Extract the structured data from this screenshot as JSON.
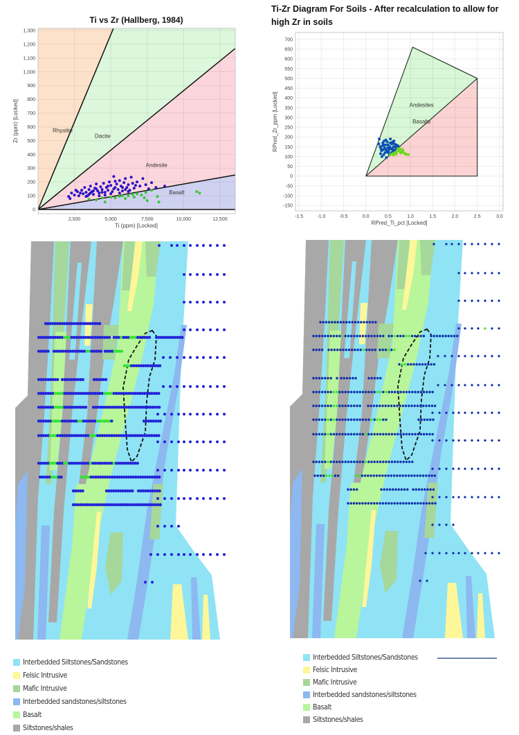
{
  "chart_data": [
    {
      "type": "scatter",
      "title": "Ti vs Zr (Hallberg, 1984)",
      "xlabel": "Ti (ppm) [Locked]",
      "ylabel": "Zr (ppm) [Locked]",
      "xlim": [
        0,
        13550
      ],
      "ylim": [
        -30,
        1315
      ],
      "xticks": [
        2500,
        5000,
        7500,
        10000,
        12500
      ],
      "xtick_labels": [
        "2,500",
        "5,000",
        "7,500",
        "10,000",
        "12,500"
      ],
      "yticks": [
        0,
        100,
        200,
        300,
        400,
        500,
        600,
        700,
        800,
        900,
        1000,
        1100,
        1200,
        1300
      ],
      "ytick_labels": [
        "0",
        "100",
        "200",
        "300",
        "400",
        "500",
        "600",
        "700",
        "800",
        "900",
        "1,000",
        "1,100",
        "1,200",
        "1,300"
      ],
      "grid": true,
      "regions": [
        {
          "label": "Rhyolite",
          "color": "#fde2cb",
          "polygon": [
            [
              0,
              0
            ],
            [
              0,
              1400
            ],
            [
              5512,
              1400
            ]
          ],
          "label_at": [
            1000,
            560
          ]
        },
        {
          "label": "Dacite",
          "color": "#dcf7db",
          "polygon": [
            [
              0,
              0
            ],
            [
              5512,
              1400
            ],
            [
              14000,
              1400
            ],
            [
              14000,
              1208
            ]
          ],
          "label_at": [
            3900,
            520
          ]
        },
        {
          "label": "Andesite",
          "color": "#fbd6dc",
          "polygon": [
            [
              0,
              0
            ],
            [
              14000,
              1208
            ],
            [
              14000,
              259
            ]
          ],
          "label_at": [
            7400,
            310
          ]
        },
        {
          "label": "Basalt",
          "color": "#cfd1f1",
          "polygon": [
            [
              0,
              0
            ],
            [
              14000,
              259
            ],
            [
              14000,
              0
            ]
          ],
          "label_at": [
            9000,
            110
          ]
        }
      ],
      "lines": [
        [
          [
            0,
            0
          ],
          [
            5512,
            1400
          ]
        ],
        [
          [
            0,
            0
          ],
          [
            14000,
            1208
          ]
        ],
        [
          [
            0,
            0
          ],
          [
            14000,
            259
          ]
        ],
        [
          [
            0,
            0
          ],
          [
            14000,
            0
          ]
        ]
      ],
      "series": [
        {
          "color": "#2b12c6",
          "points": [
            [
              2100,
              95
            ],
            [
              2200,
              80
            ],
            [
              2300,
              120
            ],
            [
              2500,
              105
            ],
            [
              2700,
              130
            ],
            [
              2800,
              100
            ],
            [
              3000,
              140
            ],
            [
              3100,
              115
            ],
            [
              3200,
              160
            ],
            [
              3300,
              125
            ],
            [
              3400,
              100
            ],
            [
              3500,
              145
            ],
            [
              3600,
              170
            ],
            [
              3700,
              130
            ],
            [
              3800,
              110
            ],
            [
              3900,
              155
            ],
            [
              4000,
              185
            ],
            [
              4100,
              135
            ],
            [
              4200,
              120
            ],
            [
              4300,
              165
            ],
            [
              4400,
              145
            ],
            [
              4500,
              190
            ],
            [
              4600,
              125
            ],
            [
              4700,
              160
            ],
            [
              4800,
              140
            ],
            [
              4900,
              200
            ],
            [
              5000,
              175
            ],
            [
              5100,
              130
            ],
            [
              5200,
              240
            ],
            [
              5300,
              160
            ],
            [
              5400,
              185
            ],
            [
              5500,
              145
            ],
            [
              5600,
              210
            ],
            [
              5700,
              170
            ],
            [
              5800,
              135
            ],
            [
              5900,
              195
            ],
            [
              6000,
              225
            ],
            [
              6100,
              160
            ],
            [
              6200,
              180
            ],
            [
              6300,
              140
            ],
            [
              6400,
              235
            ],
            [
              6500,
              190
            ],
            [
              6600,
              155
            ],
            [
              6800,
              200
            ],
            [
              7000,
              170
            ],
            [
              7200,
              225
            ],
            [
              7400,
              180
            ],
            [
              7600,
              150
            ],
            [
              7800,
              195
            ],
            [
              8100,
              160
            ],
            [
              8700,
              170
            ],
            [
              3500,
              110
            ],
            [
              4200,
              100
            ],
            [
              5000,
              115
            ],
            [
              5600,
              120
            ],
            [
              2600,
              140
            ],
            [
              3300,
              95
            ],
            [
              4600,
              105
            ],
            [
              6200,
              130
            ],
            [
              5300,
              205
            ],
            [
              2900,
              120
            ],
            [
              3800,
              135
            ],
            [
              4400,
              125
            ],
            [
              5200,
              150
            ],
            [
              5800,
              160
            ],
            [
              6700,
              175
            ],
            [
              4000,
              150
            ],
            [
              4800,
              170
            ],
            [
              3600,
              120
            ],
            [
              6000,
              145
            ]
          ]
        },
        {
          "color": "#3dc43a",
          "points": [
            [
              3500,
              75
            ],
            [
              4000,
              70
            ],
            [
              4400,
              85
            ],
            [
              4600,
              55
            ],
            [
              5000,
              90
            ],
            [
              5300,
              85
            ],
            [
              5600,
              95
            ],
            [
              6000,
              80
            ],
            [
              6200,
              100
            ],
            [
              6500,
              110
            ],
            [
              6800,
              115
            ],
            [
              7100,
              105
            ],
            [
              7300,
              85
            ],
            [
              7500,
              65
            ],
            [
              7400,
              125
            ],
            [
              7800,
              140
            ],
            [
              8200,
              95
            ],
            [
              8300,
              55
            ],
            [
              10900,
              130
            ],
            [
              11100,
              120
            ],
            [
              5800,
              100
            ],
            [
              6600,
              90
            ]
          ]
        }
      ]
    },
    {
      "type": "scatter",
      "title": "Ti-Zr Diagram For Soils - After recalculation to allow for",
      "title_line2": "high Zr in soils",
      "xlabel": "RPred_Ti_pct [Locked]",
      "ylabel": "RPred_Zr_ppm [Locked]",
      "xlim": [
        -1.58,
        3.08
      ],
      "ylim": [
        -178,
        735
      ],
      "xticks": [
        -1.5,
        -1.0,
        -0.5,
        0.0,
        0.5,
        1.0,
        1.5,
        2.0,
        2.5,
        3.0
      ],
      "xtick_labels": [
        "-1.5",
        "-1.0",
        "-0.5",
        "0.0",
        "0.5",
        "1.0",
        "1.5",
        "2.0",
        "2.5",
        "3.0"
      ],
      "yticks": [
        -150,
        -100,
        -50,
        0,
        50,
        100,
        150,
        200,
        250,
        300,
        350,
        400,
        450,
        500,
        550,
        600,
        650,
        700
      ],
      "ytick_labels": [
        "-150",
        "-100",
        "-50",
        "0",
        "50",
        "100",
        "150",
        "200",
        "250",
        "300",
        "350",
        "400",
        "450",
        "500",
        "550",
        "600",
        "650",
        "700"
      ],
      "grid": true,
      "regions": [
        {
          "label": "Andesites",
          "color": "#d7f7d6",
          "polygon": [
            [
              0,
              0
            ],
            [
              1.05,
              660
            ],
            [
              2.5,
              500
            ]
          ],
          "label_at": [
            1.25,
            355
          ]
        },
        {
          "label": "Basalts",
          "color": "#fbd3d3",
          "polygon": [
            [
              0,
              0
            ],
            [
              2.5,
              500
            ],
            [
              2.5,
              0
            ]
          ],
          "label_at": [
            1.25,
            270
          ]
        }
      ],
      "lines": [
        [
          [
            0,
            0
          ],
          [
            1.05,
            660
          ],
          [
            2.5,
            500
          ],
          [
            2.5,
            0
          ],
          [
            0,
            0
          ]
        ],
        [
          [
            0,
            0
          ],
          [
            2.5,
            500
          ]
        ]
      ],
      "series": [
        {
          "color": "#0a4fb3",
          "points": [
            [
              0.3,
              190
            ],
            [
              0.32,
              150
            ],
            [
              0.35,
              130
            ],
            [
              0.38,
              170
            ],
            [
              0.4,
              110
            ],
            [
              0.42,
              145
            ],
            [
              0.45,
              185
            ],
            [
              0.47,
              125
            ],
            [
              0.5,
              160
            ],
            [
              0.52,
              140
            ],
            [
              0.55,
              190
            ],
            [
              0.57,
              120
            ],
            [
              0.6,
              175
            ],
            [
              0.62,
              150
            ],
            [
              0.65,
              135
            ],
            [
              0.68,
              160
            ],
            [
              0.7,
              145
            ],
            [
              0.33,
              115
            ],
            [
              0.36,
              100
            ],
            [
              0.44,
              160
            ],
            [
              0.48,
              175
            ],
            [
              0.53,
              110
            ],
            [
              0.58,
              165
            ],
            [
              0.63,
              180
            ],
            [
              0.39,
              135
            ],
            [
              0.46,
              95
            ],
            [
              0.54,
              150
            ],
            [
              0.61,
              125
            ],
            [
              0.29,
              165
            ],
            [
              0.41,
              180
            ],
            [
              0.51,
              130
            ],
            [
              0.56,
              140
            ],
            [
              0.66,
              150
            ],
            [
              0.72,
              155
            ],
            [
              0.43,
              120
            ],
            [
              0.49,
              145
            ],
            [
              0.59,
              140
            ],
            [
              0.37,
              155
            ],
            [
              0.64,
              165
            ],
            [
              0.34,
              140
            ],
            [
              0.45,
              135
            ],
            [
              0.5,
              120
            ],
            [
              0.55,
              170
            ],
            [
              0.4,
              160
            ],
            [
              0.6,
              135
            ]
          ]
        },
        {
          "color": "#6fd61f",
          "points": [
            [
              0.55,
              110
            ],
            [
              0.6,
              115
            ],
            [
              0.65,
              120
            ],
            [
              0.7,
              125
            ],
            [
              0.72,
              140
            ],
            [
              0.75,
              130
            ],
            [
              0.78,
              118
            ],
            [
              0.8,
              125
            ],
            [
              0.83,
              135
            ],
            [
              0.85,
              120
            ],
            [
              0.88,
              115
            ],
            [
              0.9,
              112
            ],
            [
              0.95,
              110
            ],
            [
              0.62,
              108
            ],
            [
              0.68,
              112
            ],
            [
              0.77,
              140
            ],
            [
              0.82,
              128
            ]
          ]
        }
      ]
    }
  ],
  "legend_left": [
    {
      "label": "Interbedded Siltstones/Sandstones",
      "color": "#8fe3f5"
    },
    {
      "label": "Felsic Intrusive",
      "color": "#fdf799"
    },
    {
      "label": "Mafic Intrusive",
      "color": "#a6d79b"
    },
    {
      "label": "Interbedded sandstones/siltstones",
      "color": "#8db8f0"
    },
    {
      "label": "Basalt",
      "color": "#b9f59b"
    },
    {
      "label": "Siltstones/shales",
      "color": "#a8a8a8"
    }
  ],
  "legend_right": [
    {
      "label": "Interbedded Siltstones/Sandstones",
      "color": "#8fe3f5"
    },
    {
      "label": "Felsic Intrusive",
      "color": "#fdf799"
    },
    {
      "label": "Mafic Intrusive",
      "color": "#a6d79b"
    },
    {
      "label": "Interbedded sandstones/siltstones",
      "color": "#8db8f0"
    },
    {
      "label": "Basalt",
      "color": "#b9f59b"
    },
    {
      "label": "Siltstones/shales",
      "color": "#a8a8a8"
    }
  ],
  "legend_line_color": "#3a5a94",
  "map_colors": {
    "dot_blue": "#2323d8",
    "dot_blue_right": "#0b2aa8",
    "dot_green": "#33e333",
    "outline": "#111111"
  }
}
